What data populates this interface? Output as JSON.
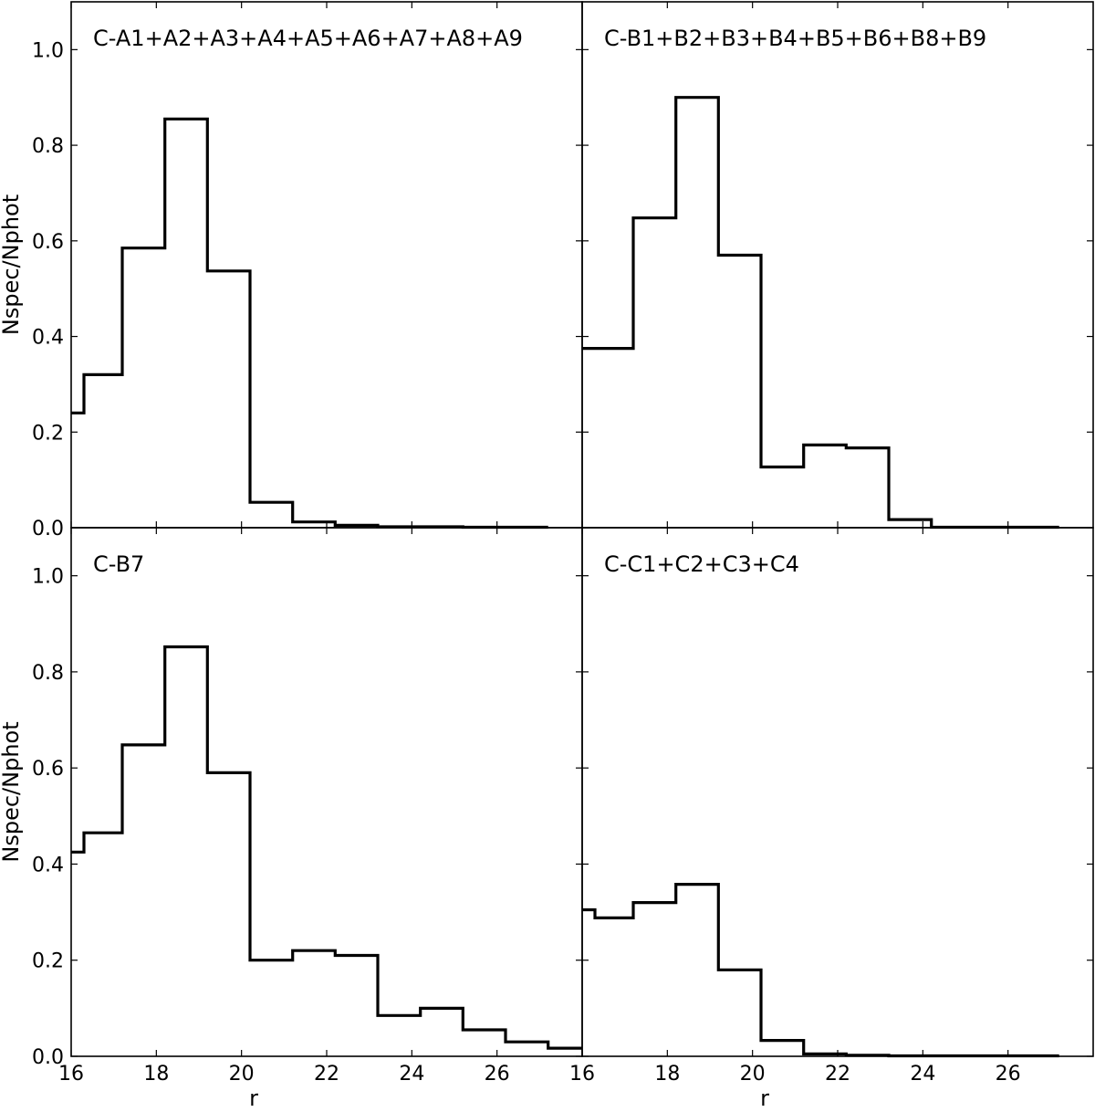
{
  "chart_data": [
    {
      "type": "histogram",
      "title": "C-A1+A2+A3+A4+A5+A6+A7+A8+A9",
      "xlabel": "",
      "ylabel": "Nspec/Nphot",
      "xlim": [
        16,
        28
      ],
      "ylim": [
        0,
        1.1
      ],
      "x_ticks": [],
      "y_ticks": [
        "0.0",
        "0.2",
        "0.4",
        "0.6",
        "0.8",
        "1.0"
      ],
      "bin_edges": [
        16.0,
        16.3,
        17.2,
        18.2,
        19.2,
        20.2,
        21.2,
        22.2,
        23.2,
        24.2,
        25.2,
        26.2,
        27.2
      ],
      "values": [
        0.24,
        0.32,
        0.585,
        0.855,
        0.537,
        0.053,
        0.012,
        0.005,
        0.002,
        0.002,
        0.001,
        0.001
      ]
    },
    {
      "type": "histogram",
      "title": "C-B1+B2+B3+B4+B5+B6+B8+B9",
      "xlabel": "",
      "ylabel": "",
      "xlim": [
        16,
        28
      ],
      "ylim": [
        0,
        1.1
      ],
      "x_ticks": [],
      "y_ticks": [],
      "bin_edges": [
        16.0,
        17.2,
        18.2,
        19.2,
        20.2,
        21.2,
        22.2,
        23.2,
        24.2,
        25.2,
        26.2,
        27.2
      ],
      "values": [
        0.375,
        0.648,
        0.9,
        0.57,
        0.127,
        0.173,
        0.167,
        0.017,
        0.001,
        0.001,
        0.001
      ]
    },
    {
      "type": "histogram",
      "title": "C-B7",
      "xlabel": "r",
      "ylabel": "Nspec/Nphot",
      "xlim": [
        16,
        28
      ],
      "ylim": [
        0,
        1.1
      ],
      "x_ticks": [
        "16",
        "18",
        "20",
        "22",
        "24",
        "26"
      ],
      "y_ticks": [
        "0.0",
        "0.2",
        "0.4",
        "0.6",
        "0.8",
        "1.0"
      ],
      "bin_edges": [
        16.0,
        16.3,
        17.2,
        18.2,
        19.2,
        20.2,
        21.2,
        22.2,
        23.2,
        24.2,
        25.2,
        26.2,
        27.2,
        28.0
      ],
      "values": [
        0.425,
        0.465,
        0.648,
        0.852,
        0.59,
        0.2,
        0.22,
        0.21,
        0.085,
        0.1,
        0.055,
        0.03,
        0.017
      ]
    },
    {
      "type": "histogram",
      "title": "C-C1+C2+C3+C4",
      "xlabel": "r",
      "ylabel": "",
      "xlim": [
        16,
        28
      ],
      "ylim": [
        0,
        1.1
      ],
      "x_ticks": [
        "16",
        "18",
        "20",
        "22",
        "24",
        "26"
      ],
      "y_ticks": [],
      "bin_edges": [
        16.0,
        16.3,
        17.2,
        18.2,
        19.2,
        20.2,
        21.2,
        22.2,
        23.2,
        24.2,
        25.2,
        26.2,
        27.2
      ],
      "values": [
        0.305,
        0.288,
        0.32,
        0.358,
        0.18,
        0.033,
        0.005,
        0.002,
        0.001,
        0.001,
        0.001,
        0.001
      ]
    }
  ]
}
